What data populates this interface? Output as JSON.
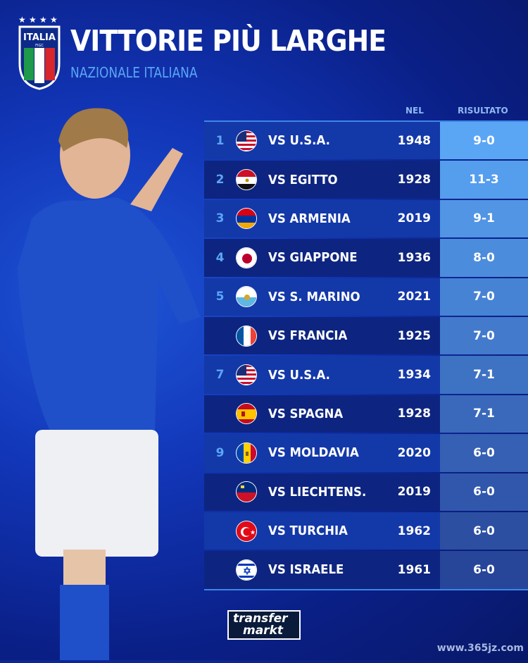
{
  "header": {
    "title": "VITTORIE PIÙ LARGHE",
    "subtitle": "NAZIONALE ITALIANA",
    "logo_text": "ITALIA",
    "logo_sub": "FIGC"
  },
  "columns": {
    "year": "NEL",
    "result": "RISULTATO"
  },
  "rows": [
    {
      "rank": "1",
      "flag": "usa",
      "opponent": "VS U.S.A.",
      "year": "1948",
      "result": "9-0"
    },
    {
      "rank": "2",
      "flag": "egypt",
      "opponent": "VS EGITTO",
      "year": "1928",
      "result": "11-3"
    },
    {
      "rank": "3",
      "flag": "armenia",
      "opponent": "VS ARMENIA",
      "year": "2019",
      "result": "9-1"
    },
    {
      "rank": "4",
      "flag": "japan",
      "opponent": "VS GIAPPONE",
      "year": "1936",
      "result": "8-0"
    },
    {
      "rank": "5",
      "flag": "san-marino",
      "opponent": "VS S. MARINO",
      "year": "2021",
      "result": "7-0"
    },
    {
      "rank": "",
      "flag": "france",
      "opponent": "VS FRANCIA",
      "year": "1925",
      "result": "7-0"
    },
    {
      "rank": "7",
      "flag": "usa",
      "opponent": "VS U.S.A.",
      "year": "1934",
      "result": "7-1"
    },
    {
      "rank": "",
      "flag": "spain",
      "opponent": "VS SPAGNA",
      "year": "1928",
      "result": "7-1"
    },
    {
      "rank": "9",
      "flag": "moldova",
      "opponent": "VS MOLDAVIA",
      "year": "2020",
      "result": "6-0"
    },
    {
      "rank": "",
      "flag": "liechtenstein",
      "opponent": "VS LIECHTENS.",
      "year": "2019",
      "result": "6-0"
    },
    {
      "rank": "",
      "flag": "turkey",
      "opponent": "VS TURCHIA",
      "year": "1962",
      "result": "6-0"
    },
    {
      "rank": "",
      "flag": "israel",
      "opponent": "VS ISRAELE",
      "year": "1961",
      "result": "6-0"
    }
  ],
  "footer": {
    "brand_line1": "transfer",
    "brand_line2": "markt",
    "watermark": "www.365jz.com"
  },
  "colors": {
    "accent": "#5aa6f5",
    "result_top": "#5aa6f5",
    "result_bottom": "#27469a"
  }
}
